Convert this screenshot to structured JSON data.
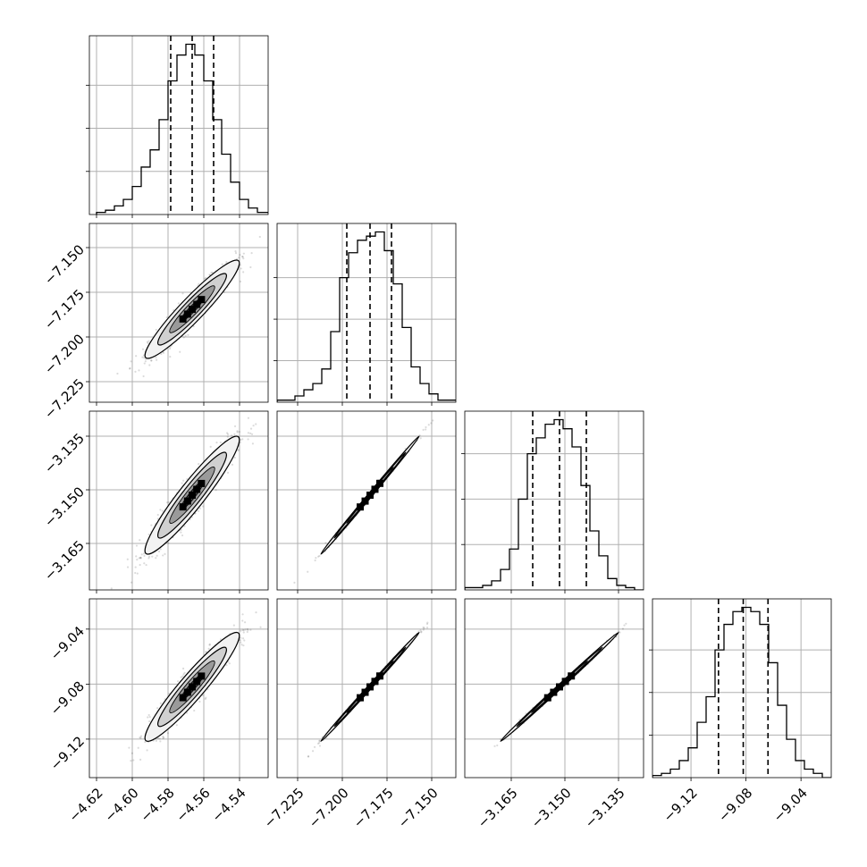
{
  "chart_data": {
    "type": "corner",
    "grid": true,
    "parameters": [
      {
        "median": -4.5665,
        "q16": -4.5785,
        "q84": -4.5545,
        "range": [
          -4.624,
          -4.524
        ],
        "ticks": [
          -4.62,
          -4.6,
          -4.58,
          -4.56,
          -4.54
        ],
        "tick_labels": [
          "−4.62",
          "−4.60",
          "−4.58",
          "−4.56",
          "−4.54"
        ],
        "hist_x": [
          -4.62,
          -4.615,
          -4.61,
          -4.605,
          -4.6,
          -4.595,
          -4.59,
          -4.585,
          -4.58,
          -4.575,
          -4.57,
          -4.565,
          -4.56,
          -4.555,
          -4.55,
          -4.545,
          -4.54,
          -4.535,
          -4.53,
          -4.525
        ],
        "hist_counts": [
          1,
          2,
          4,
          7,
          13,
          22,
          30,
          44,
          62,
          74,
          79,
          74,
          62,
          44,
          28,
          15,
          7,
          3,
          1,
          1
        ],
        "y_ticks": [
          20,
          40,
          60
        ]
      },
      {
        "median": -7.1845,
        "q16": -7.1975,
        "q84": -7.1725,
        "range": [
          -7.2365,
          -7.1365
        ],
        "ticks": [
          -7.225,
          -7.2,
          -7.175,
          -7.15
        ],
        "tick_labels": [
          "−7.225",
          "−7.200",
          "−7.175",
          "−7.150"
        ],
        "hist_x": [
          -7.2365,
          -7.2315,
          -7.2265,
          -7.2215,
          -7.2165,
          -7.2115,
          -7.2065,
          -7.2015,
          -7.1965,
          -7.1915,
          -7.1865,
          -7.1815,
          -7.1765,
          -7.1715,
          -7.1665,
          -7.1615,
          -7.1565,
          -7.1515,
          -7.1465,
          -7.1415
        ],
        "hist_counts": [
          1,
          1,
          3,
          6,
          9,
          16,
          34,
          60,
          72,
          78,
          80,
          82,
          73,
          57,
          36,
          17,
          9,
          4,
          1,
          1
        ],
        "y_ticks": [
          20,
          40,
          60
        ]
      },
      {
        "median": -3.1515,
        "q16": -3.159,
        "q84": -3.144,
        "range": [
          -3.178,
          -3.128
        ],
        "ticks": [
          -3.165,
          -3.15,
          -3.135
        ],
        "tick_labels": [
          "−3.165",
          "−3.150",
          "−3.135"
        ],
        "hist_x": [
          -3.178,
          -3.1755,
          -3.173,
          -3.1705,
          -3.168,
          -3.1655,
          -3.163,
          -3.1605,
          -3.158,
          -3.1555,
          -3.153,
          -3.1505,
          -3.148,
          -3.1455,
          -3.143,
          -3.1405,
          -3.138,
          -3.1355,
          -3.133,
          -3.1305
        ],
        "hist_counts": [
          1,
          1,
          2,
          4,
          9,
          18,
          40,
          60,
          67,
          73,
          75,
          71,
          63,
          46,
          26,
          15,
          5,
          2,
          1,
          0
        ],
        "y_ticks": [
          20,
          40,
          60
        ]
      },
      {
        "median": -9.082,
        "q16": -9.1,
        "q84": -9.064,
        "range": [
          -9.148,
          -9.018
        ],
        "ticks": [
          -9.12,
          -9.08,
          -9.04
        ],
        "tick_labels": [
          "−9.12",
          "−9.08",
          "−9.04"
        ],
        "hist_x": [
          -9.148,
          -9.1415,
          -9.135,
          -9.1285,
          -9.122,
          -9.1155,
          -9.109,
          -9.1025,
          -9.096,
          -9.0895,
          -9.083,
          -9.0765,
          -9.07,
          -9.0635,
          -9.057,
          -9.0505,
          -9.044,
          -9.0375,
          -9.031,
          -9.0245
        ],
        "hist_counts": [
          1,
          2,
          4,
          8,
          14,
          26,
          38,
          60,
          72,
          78,
          80,
          78,
          72,
          54,
          34,
          18,
          8,
          4,
          2,
          0
        ],
        "y_ticks": [
          20,
          40,
          60
        ]
      }
    ],
    "y_tick_labels": {
      "1": [
        "−7.150",
        "−7.175",
        "−7.200",
        "−7.225"
      ],
      "2": [
        "−3.135",
        "−3.150",
        "−3.165"
      ],
      "3": [
        "−9.04",
        "−9.08",
        "−9.12"
      ]
    },
    "quantiles": [
      0.16,
      0.5,
      0.84
    ],
    "point_cloud_density": "gray scatter with filled contour levels"
  }
}
